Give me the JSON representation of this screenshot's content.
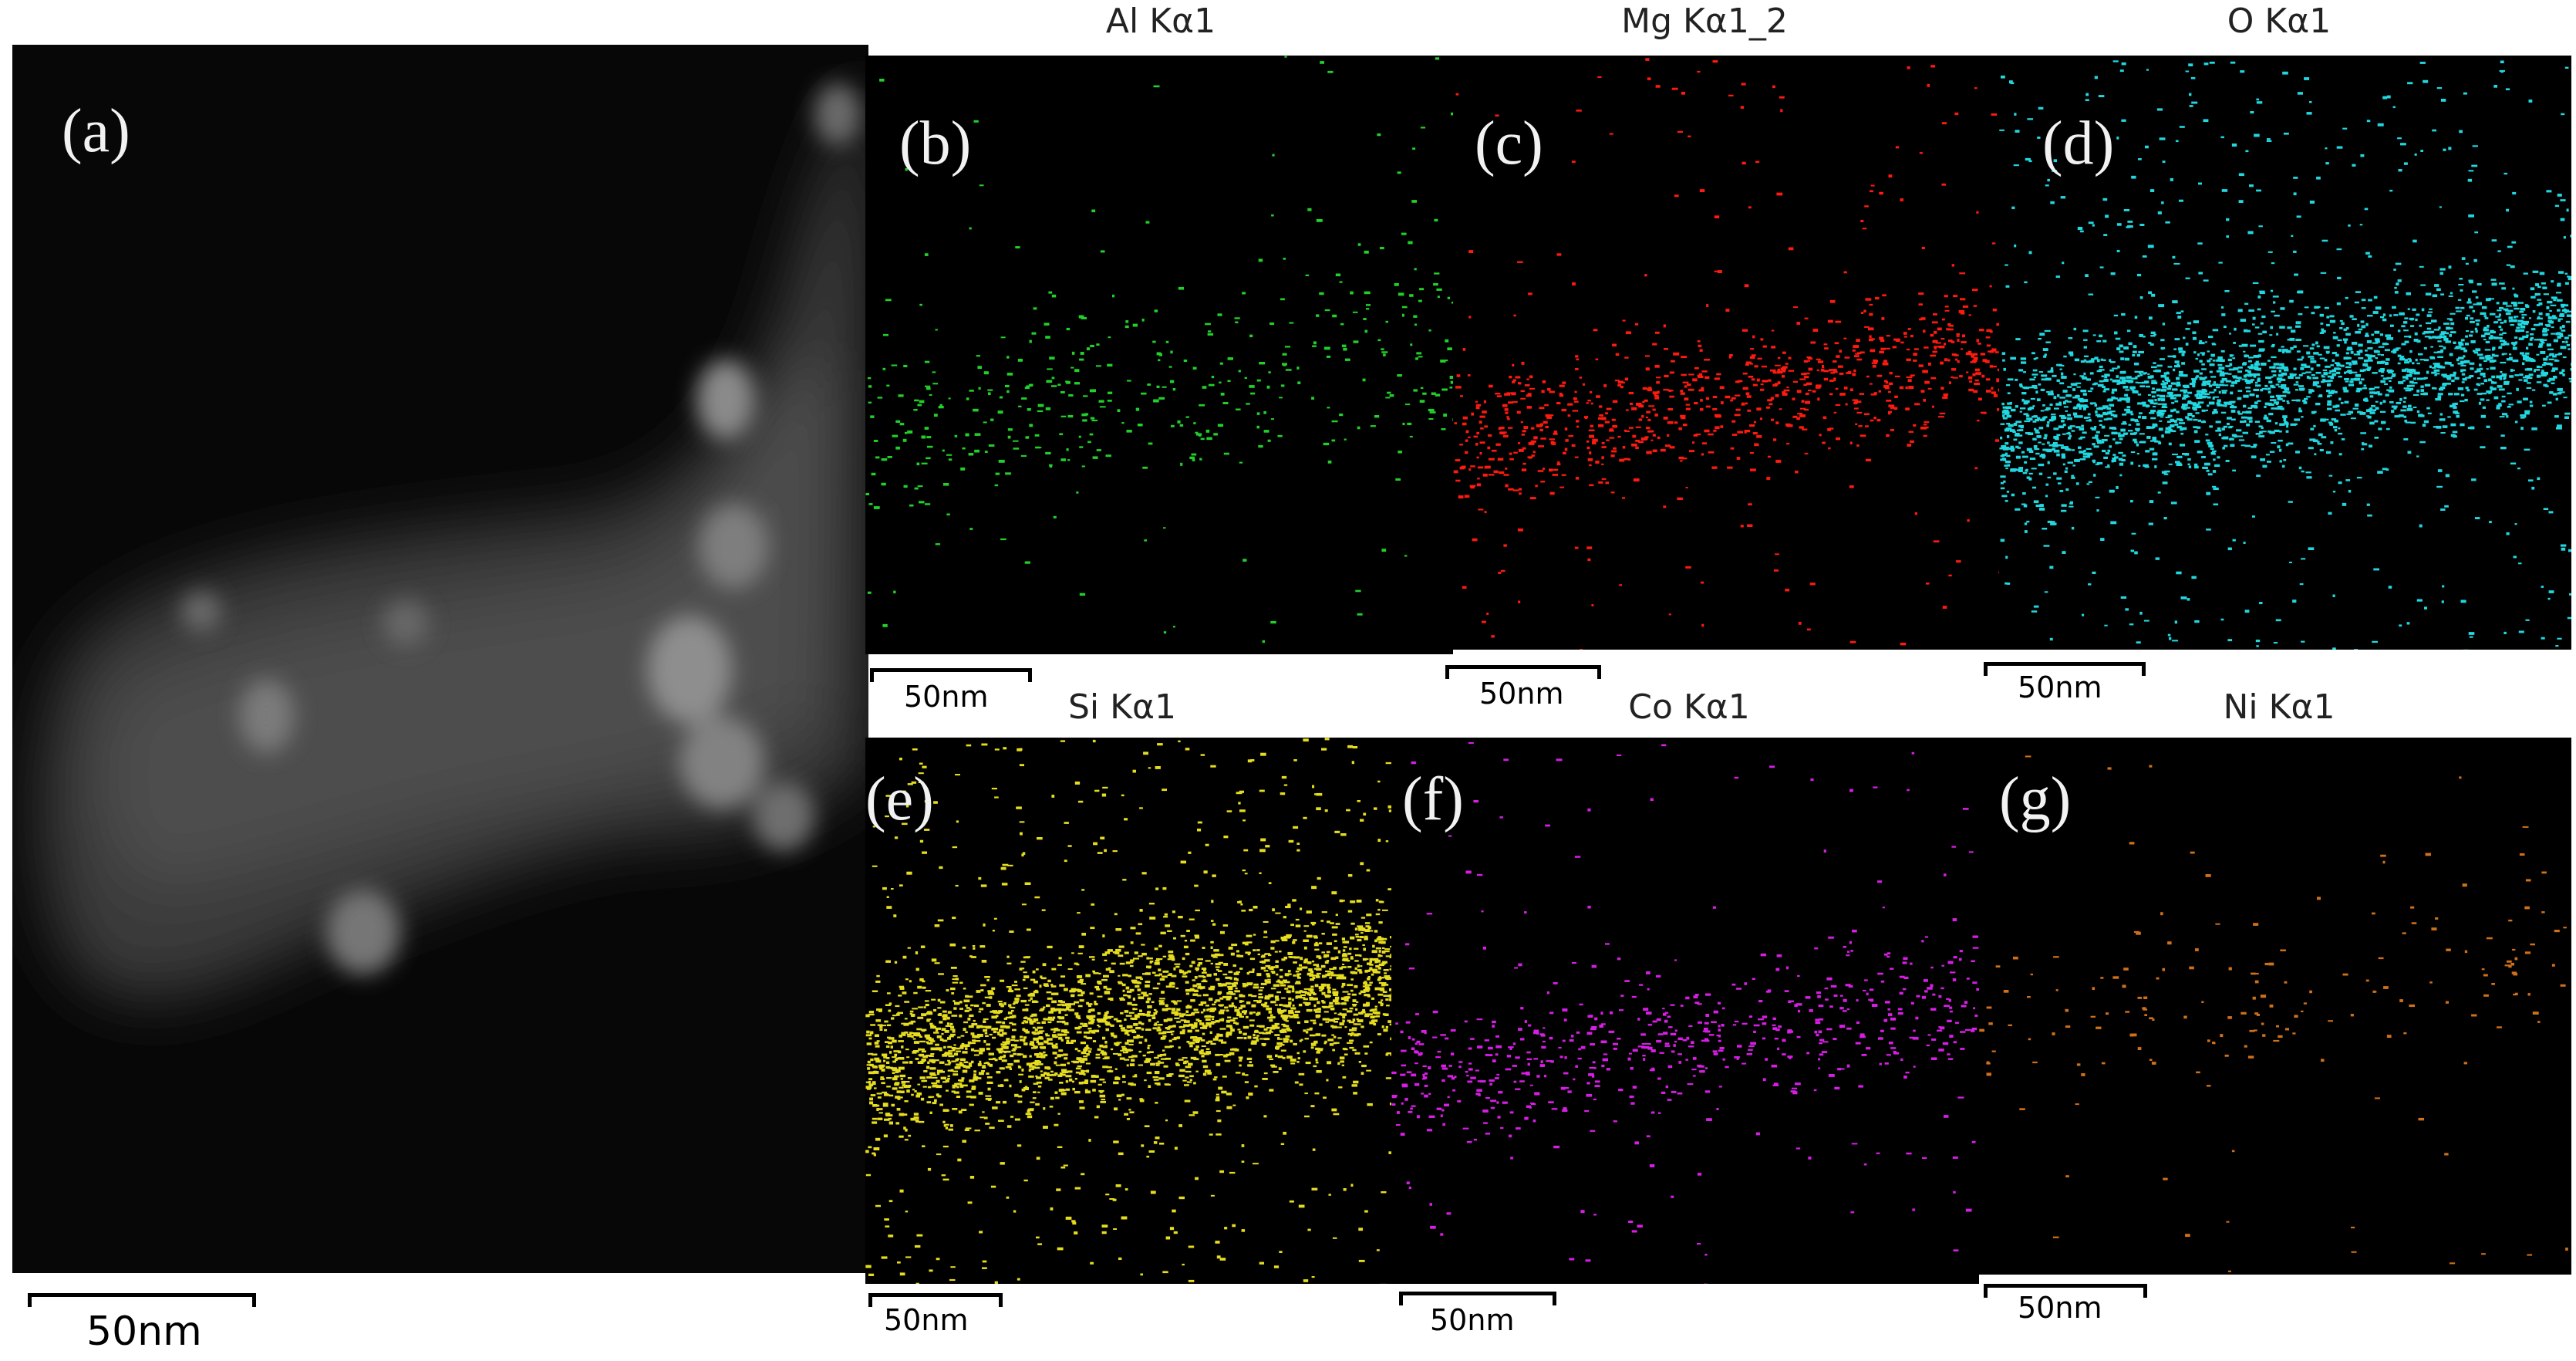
{
  "figure": {
    "panels": [
      {
        "id": "a",
        "label": "(a)",
        "title": "",
        "scale_bar": "50nm",
        "color": ""
      },
      {
        "id": "b",
        "label": "(b)",
        "title": "Al Kα1",
        "scale_bar": "50nm",
        "color": "#22d02a"
      },
      {
        "id": "c",
        "label": "(c)",
        "title": "Mg Kα1_2",
        "scale_bar": "50nm",
        "color": "#ff1a10"
      },
      {
        "id": "d",
        "label": "(d)",
        "title": "O Kα1",
        "scale_bar": "50nm",
        "color": "#21d8e0"
      },
      {
        "id": "e",
        "label": "(e)",
        "title": "Si Kα1",
        "scale_bar": "50nm",
        "color": "#e6dd1e"
      },
      {
        "id": "f",
        "label": "(f)",
        "title": "Co Kα1",
        "scale_bar": "50nm",
        "color": "#d81ee6"
      },
      {
        "id": "g",
        "label": "(g)",
        "title": "Ni Kα1",
        "scale_bar": "50nm",
        "color": "#d0701a"
      }
    ]
  }
}
